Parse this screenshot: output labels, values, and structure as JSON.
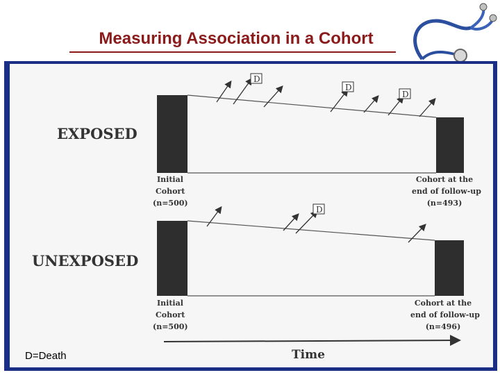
{
  "title": "Measuring Association in a Cohort",
  "legend": "D=Death",
  "exposed": {
    "label": "EXPOSED",
    "initial": [
      "Initial",
      "Cohort",
      "(n=500)"
    ],
    "final": [
      "Cohort at the",
      "end of follow-up",
      "(n=493)"
    ],
    "death_marker": "D"
  },
  "unexposed": {
    "label": "UNEXPOSED",
    "initial": [
      "Initial",
      "Cohort",
      "(n=500)"
    ],
    "final": [
      "Cohort at the",
      "end of follow-up",
      "(n=496)"
    ],
    "death_marker": "D"
  },
  "time_label": "Time",
  "colors": {
    "title": "#8b1a1a",
    "frame": "#1a2e86",
    "bar": "#2e2e2e",
    "stethoscope": "#2b4f9e"
  },
  "icon": "stethoscope-icon"
}
